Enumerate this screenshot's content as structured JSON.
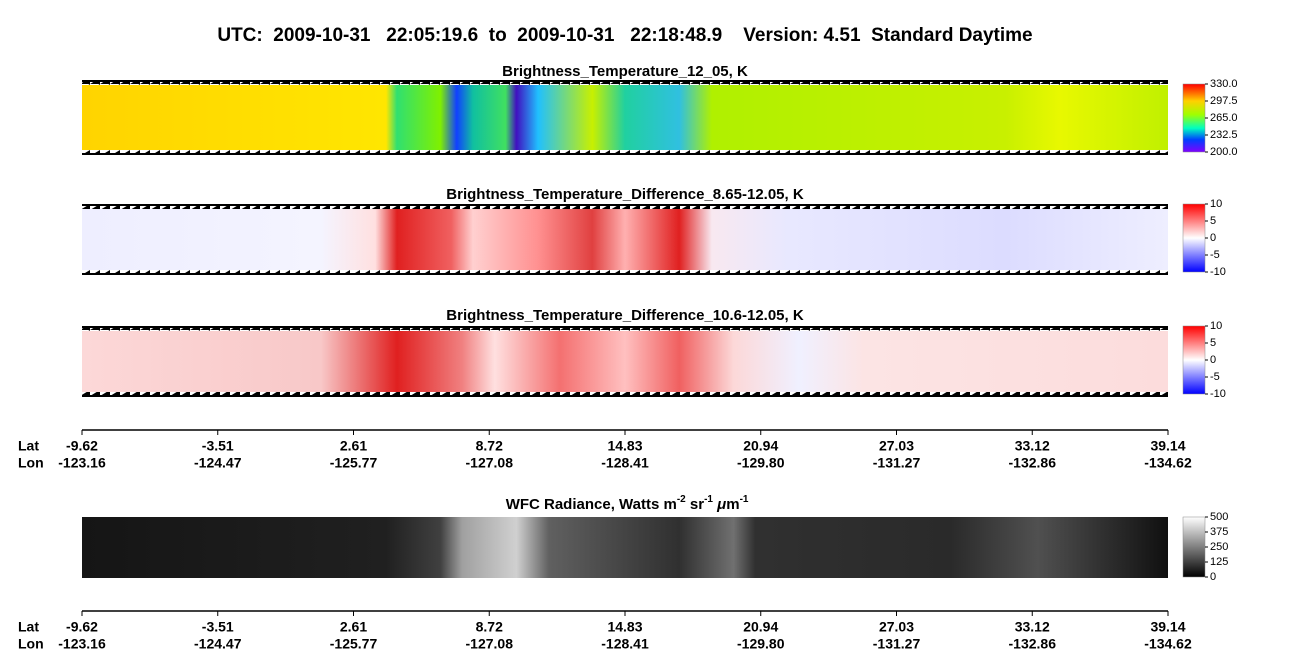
{
  "title": "UTC:  2009-10-31   22:05:19.6  to  2009-10-31   22:18:48.9    Version: 4.51  Standard Daytime",
  "panels": [
    {
      "title": "Brightness_Temperature_12_05, K",
      "colorbar_labels": [
        "330.0",
        "297.5",
        "265.0",
        "232.5",
        "200.0"
      ]
    },
    {
      "title": "Brightness_Temperature_Difference_8.65-12.05, K",
      "colorbar_labels": [
        "10",
        "5",
        "0",
        "-5",
        "-10"
      ]
    },
    {
      "title": "Brightness_Temperature_Difference_10.6-12.05, K",
      "colorbar_labels": [
        "10",
        "5",
        "0",
        "-5",
        "-10"
      ]
    },
    {
      "title_parts": [
        "WFC Radiance, Watts m",
        "-2",
        " sr",
        "-1",
        " ",
        "μ",
        "m",
        "-1"
      ],
      "colorbar_labels": [
        "500",
        "375",
        "250",
        "125",
        "0"
      ]
    }
  ],
  "axes": [
    {
      "lat_label": "Lat",
      "lon_label": "Lon",
      "lat": [
        "-9.62",
        "-3.51",
        "2.61",
        "8.72",
        "14.83",
        "20.94",
        "27.03",
        "33.12",
        "39.14"
      ],
      "lon": [
        "-123.16",
        "-124.47",
        "-125.77",
        "-127.08",
        "-128.41",
        "-129.80",
        "-131.27",
        "-132.86",
        "-134.62"
      ]
    },
    {
      "lat_label": "Lat",
      "lon_label": "Lon",
      "lat": [
        "-9.62",
        "-3.51",
        "2.61",
        "8.72",
        "14.83",
        "20.94",
        "27.03",
        "33.12",
        "39.14"
      ],
      "lon": [
        "-123.16",
        "-124.47",
        "-125.77",
        "-127.08",
        "-128.41",
        "-129.80",
        "-131.27",
        "-132.86",
        "-134.62"
      ]
    }
  ]
}
